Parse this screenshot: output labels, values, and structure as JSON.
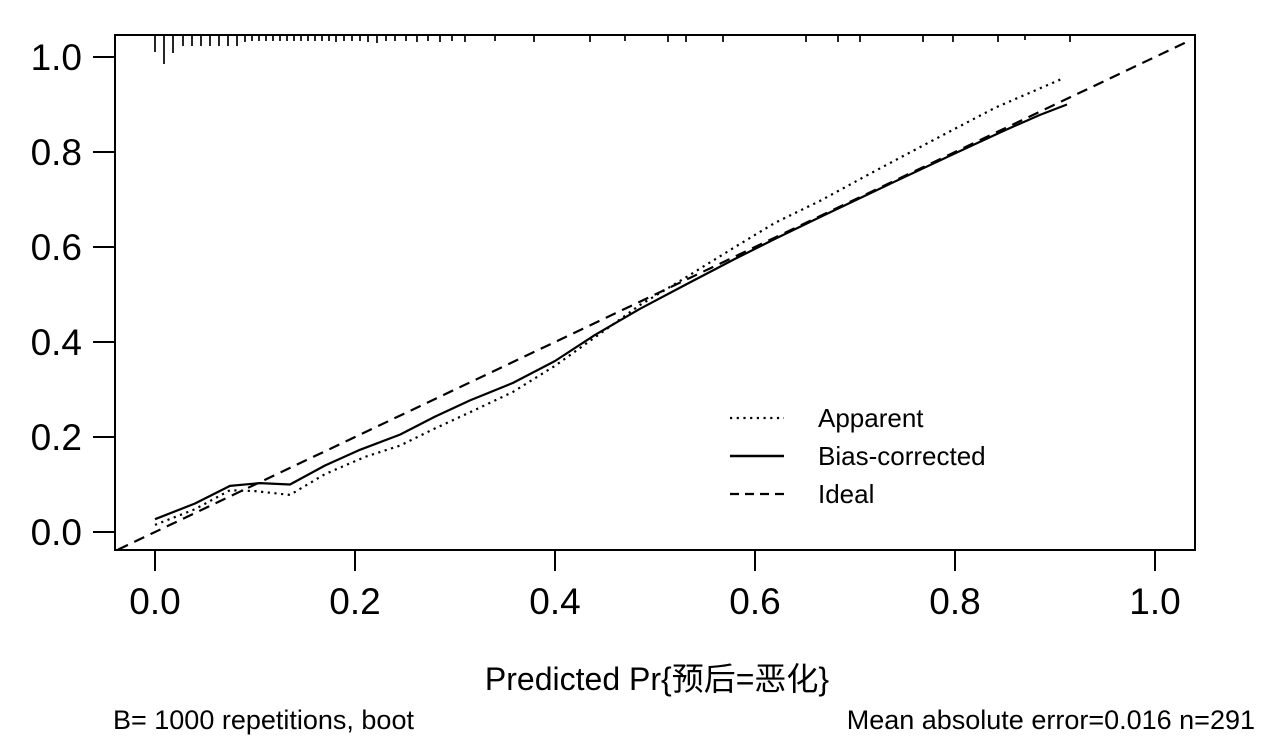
{
  "chart_data": {
    "type": "line",
    "xlabel": "Predicted Pr{预后=恶化}",
    "ylabel": "",
    "xlim": [
      -0.04,
      1.04
    ],
    "ylim": [
      -0.038,
      1.046
    ],
    "x_tick_labels": [
      "0.0",
      "0.2",
      "0.4",
      "0.6",
      "0.8",
      "1.0"
    ],
    "y_tick_labels": [
      "0.0",
      "0.2",
      "0.4",
      "0.6",
      "0.8",
      "1.0"
    ],
    "grid": false,
    "legend_position": "inside-right-center",
    "axis_color": "#000000",
    "background_color": "#ffffff",
    "series": [
      {
        "name": "Apparent",
        "style": "dotted",
        "color": "#000000",
        "points": [
          [
            0.0,
            0.015
          ],
          [
            0.04,
            0.048
          ],
          [
            0.075,
            0.088
          ],
          [
            0.1,
            0.086
          ],
          [
            0.135,
            0.078
          ],
          [
            0.17,
            0.122
          ],
          [
            0.21,
            0.158
          ],
          [
            0.245,
            0.182
          ],
          [
            0.28,
            0.218
          ],
          [
            0.315,
            0.252
          ],
          [
            0.358,
            0.295
          ],
          [
            0.4,
            0.35
          ],
          [
            0.44,
            0.41
          ],
          [
            0.485,
            0.478
          ],
          [
            0.53,
            0.535
          ],
          [
            0.58,
            0.6
          ],
          [
            0.62,
            0.651
          ],
          [
            0.665,
            0.697
          ],
          [
            0.72,
            0.76
          ],
          [
            0.78,
            0.827
          ],
          [
            0.84,
            0.893
          ],
          [
            0.908,
            0.955
          ]
        ]
      },
      {
        "name": "Bias-corrected",
        "style": "solid",
        "color": "#000000",
        "points": [
          [
            0.0,
            0.027
          ],
          [
            0.04,
            0.06
          ],
          [
            0.075,
            0.097
          ],
          [
            0.105,
            0.103
          ],
          [
            0.135,
            0.1
          ],
          [
            0.17,
            0.14
          ],
          [
            0.205,
            0.173
          ],
          [
            0.245,
            0.205
          ],
          [
            0.28,
            0.243
          ],
          [
            0.315,
            0.277
          ],
          [
            0.358,
            0.314
          ],
          [
            0.4,
            0.36
          ],
          [
            0.44,
            0.415
          ],
          [
            0.485,
            0.47
          ],
          [
            0.53,
            0.52
          ],
          [
            0.58,
            0.575
          ],
          [
            0.62,
            0.617
          ],
          [
            0.665,
            0.663
          ],
          [
            0.73,
            0.728
          ],
          [
            0.8,
            0.797
          ],
          [
            0.85,
            0.846
          ],
          [
            0.885,
            0.878
          ],
          [
            0.912,
            0.9
          ]
        ]
      },
      {
        "name": "Ideal",
        "style": "dashed",
        "color": "#000000",
        "points": [
          [
            -0.037,
            -0.037
          ],
          [
            1.036,
            1.036
          ]
        ]
      }
    ],
    "rug": [
      [
        0.0,
        16
      ],
      [
        0.009,
        28
      ],
      [
        0.018,
        17
      ],
      [
        0.028,
        10
      ],
      [
        0.037,
        10
      ],
      [
        0.046,
        10
      ],
      [
        0.055,
        10
      ],
      [
        0.064,
        10
      ],
      [
        0.073,
        10
      ],
      [
        0.082,
        10
      ],
      [
        0.09,
        6
      ],
      [
        0.097,
        5
      ],
      [
        0.104,
        5
      ],
      [
        0.111,
        5
      ],
      [
        0.118,
        5
      ],
      [
        0.125,
        5
      ],
      [
        0.132,
        5
      ],
      [
        0.139,
        5
      ],
      [
        0.146,
        5
      ],
      [
        0.153,
        5
      ],
      [
        0.16,
        5
      ],
      [
        0.167,
        5
      ],
      [
        0.174,
        5
      ],
      [
        0.181,
        6
      ],
      [
        0.189,
        5
      ],
      [
        0.197,
        5
      ],
      [
        0.205,
        5
      ],
      [
        0.213,
        6
      ],
      [
        0.222,
        7
      ],
      [
        0.231,
        5
      ],
      [
        0.24,
        5
      ],
      [
        0.251,
        5
      ],
      [
        0.262,
        6
      ],
      [
        0.273,
        5
      ],
      [
        0.285,
        6
      ],
      [
        0.297,
        5
      ],
      [
        0.31,
        6
      ],
      [
        0.34,
        5
      ],
      [
        0.379,
        6
      ],
      [
        0.435,
        6
      ],
      [
        0.47,
        5
      ],
      [
        0.513,
        6
      ],
      [
        0.531,
        6
      ],
      [
        0.568,
        6
      ],
      [
        0.651,
        6
      ],
      [
        0.683,
        6
      ],
      [
        0.705,
        6
      ],
      [
        0.768,
        6
      ],
      [
        0.798,
        6
      ],
      [
        0.843,
        6
      ],
      [
        0.87,
        4
      ],
      [
        0.915,
        6
      ]
    ],
    "annotations": {
      "bottom_left": "B= 1000 repetitions, boot",
      "bottom_right": "Mean absolute error=0.016 n=291"
    }
  }
}
